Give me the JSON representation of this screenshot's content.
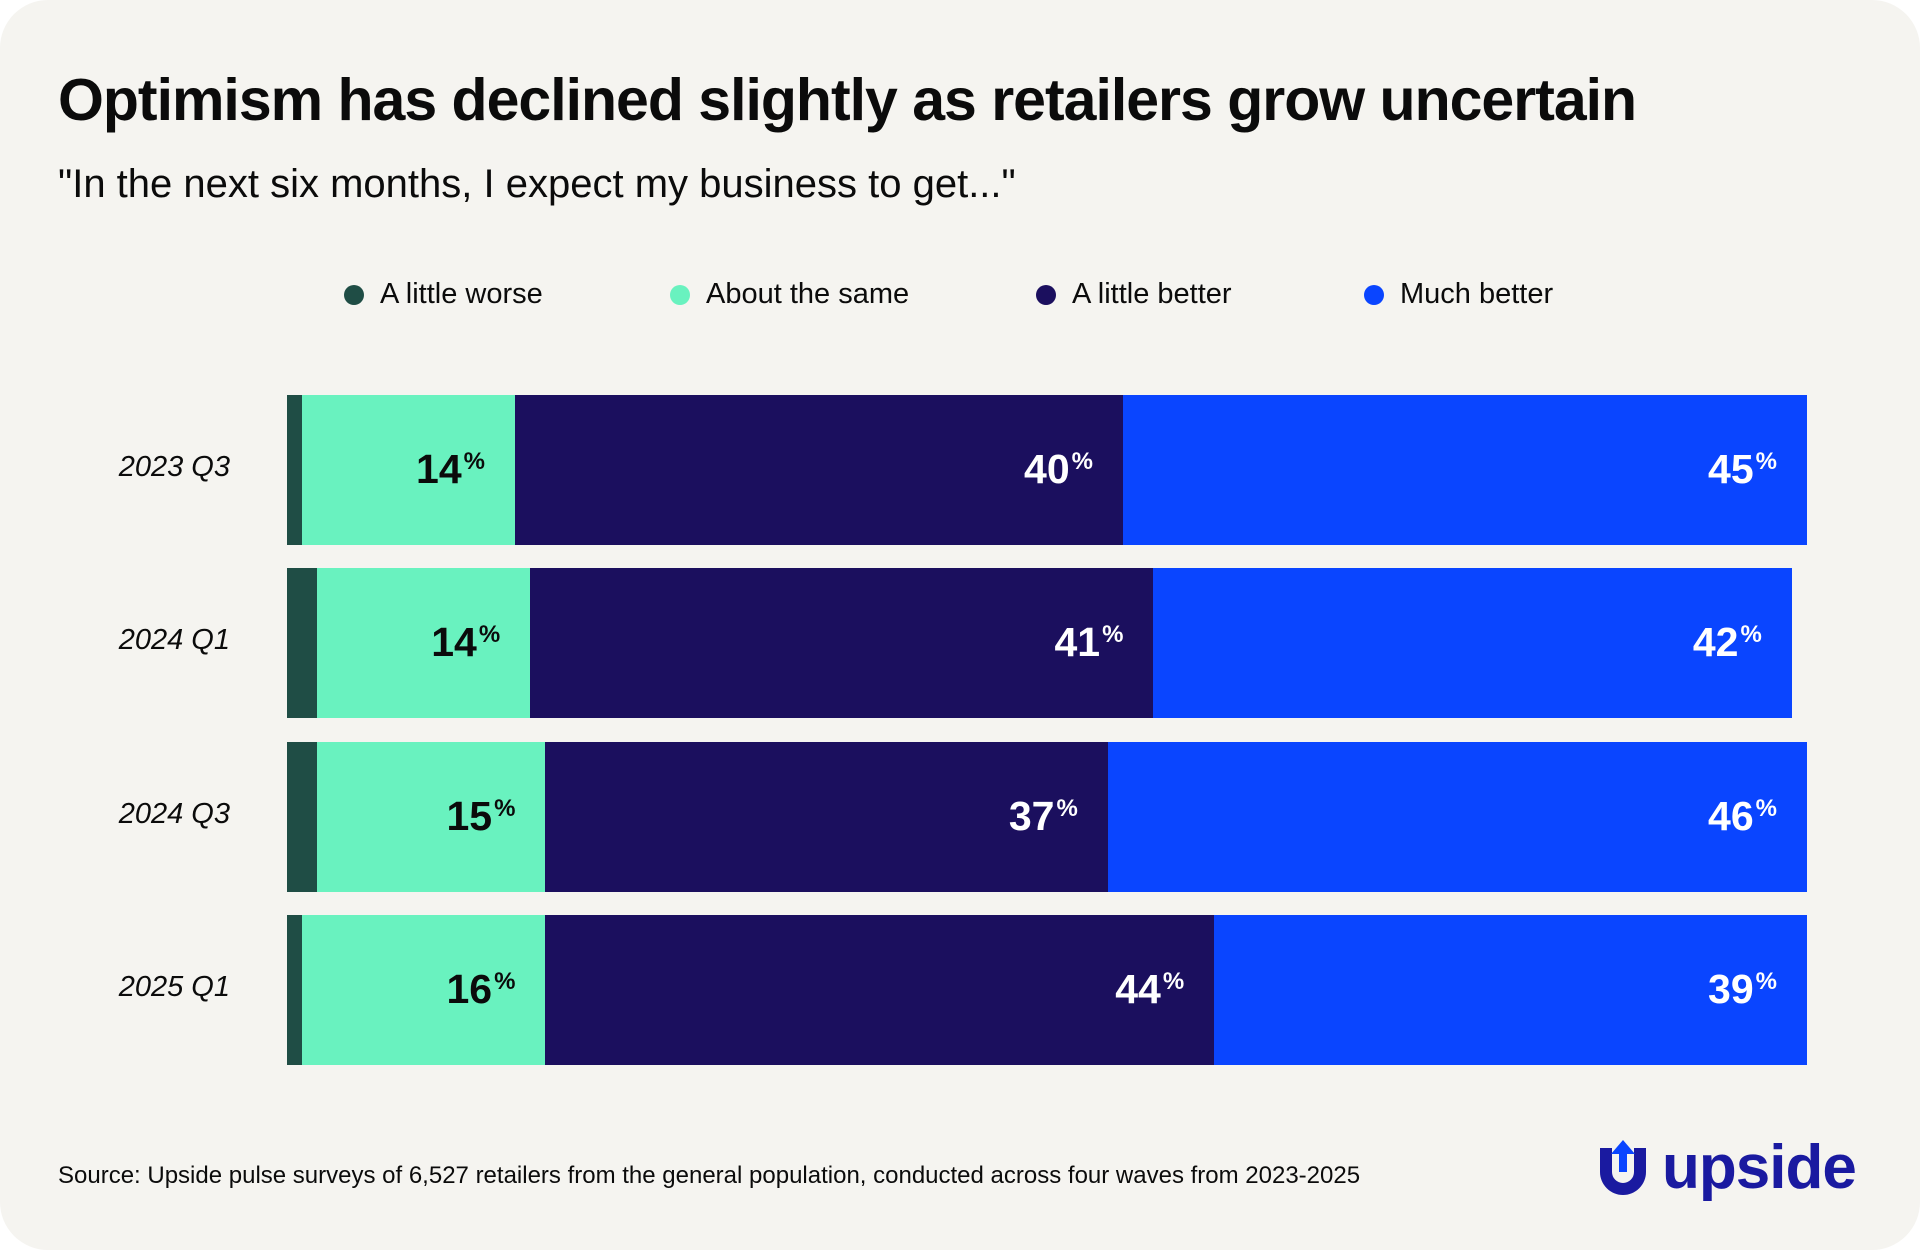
{
  "title": "Optimism has declined slightly as retailers grow uncertain",
  "subtitle": "\"In the next six months, I expect my business to get...\"",
  "legend": [
    {
      "label": "A little worse",
      "color": "#1f4d45"
    },
    {
      "label": "About the same",
      "color": "#69f2bf"
    },
    {
      "label": "A little better",
      "color": "#1b0f5e"
    },
    {
      "label": "Much better",
      "color": "#0a45ff"
    }
  ],
  "chart_data": {
    "type": "bar",
    "orientation": "horizontal",
    "stacked": true,
    "categories": [
      "2023 Q3",
      "2024 Q1",
      "2024 Q3",
      "2025 Q1"
    ],
    "series": [
      {
        "name": "A little worse",
        "values": [
          1,
          2,
          2,
          1
        ]
      },
      {
        "name": "About the same",
        "values": [
          14,
          14,
          15,
          16
        ]
      },
      {
        "name": "A little better",
        "values": [
          40,
          41,
          37,
          44
        ]
      },
      {
        "name": "Much better",
        "values": [
          45,
          42,
          46,
          39
        ]
      }
    ],
    "data_labels": [
      [
        null,
        "14",
        "40",
        "45"
      ],
      [
        null,
        "14",
        "41",
        "42"
      ],
      [
        null,
        "15",
        "37",
        "46"
      ],
      [
        null,
        "16",
        "44",
        "39"
      ]
    ],
    "label_suffix": "%",
    "label_colors": [
      "#ffffff",
      "#0b0b0b",
      "#ffffff",
      "#ffffff"
    ],
    "xlim": [
      0,
      100
    ],
    "grid": false,
    "legend_position": "top"
  },
  "source": "Source: Upside pulse surveys of 6,527 retailers from the general population, conducted across four waves from 2023-2025",
  "logo": {
    "text": "upside",
    "color": "#1a1aa0"
  }
}
